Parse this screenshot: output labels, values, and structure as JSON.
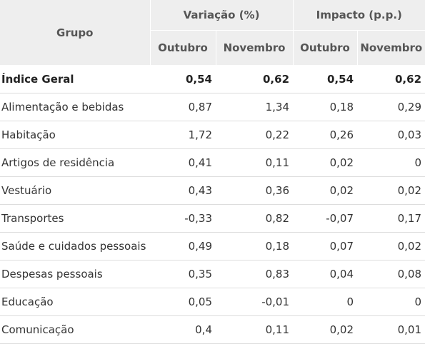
{
  "header": {
    "group": "Grupo",
    "variation": "Variação (%)",
    "impact": "Impacto (p.p.)",
    "months": [
      "Outubro",
      "Novembro",
      "Outubro",
      "Novembro"
    ]
  },
  "rows": [
    {
      "group": "Índice Geral",
      "var_oct": "0,54",
      "var_nov": "0,62",
      "imp_oct": "0,54",
      "imp_nov": "0,62",
      "bold": true
    },
    {
      "group": "Alimentação e bebidas",
      "var_oct": "0,87",
      "var_nov": "1,34",
      "imp_oct": "0,18",
      "imp_nov": "0,29"
    },
    {
      "group": "Habitação",
      "var_oct": "1,72",
      "var_nov": "0,22",
      "imp_oct": "0,26",
      "imp_nov": "0,03"
    },
    {
      "group": "Artigos de residência",
      "var_oct": "0,41",
      "var_nov": "0,11",
      "imp_oct": "0,02",
      "imp_nov": "0"
    },
    {
      "group": "Vestuário",
      "var_oct": "0,43",
      "var_nov": "0,36",
      "imp_oct": "0,02",
      "imp_nov": "0,02"
    },
    {
      "group": "Transportes",
      "var_oct": "-0,33",
      "var_nov": "0,82",
      "imp_oct": "-0,07",
      "imp_nov": "0,17"
    },
    {
      "group": "Saúde e cuidados pessoais",
      "var_oct": "0,49",
      "var_nov": "0,18",
      "imp_oct": "0,07",
      "imp_nov": "0,02"
    },
    {
      "group": "Despesas pessoais",
      "var_oct": "0,35",
      "var_nov": "0,83",
      "imp_oct": "0,04",
      "imp_nov": "0,08"
    },
    {
      "group": "Educação",
      "var_oct": "0,05",
      "var_nov": "-0,01",
      "imp_oct": "0",
      "imp_nov": "0"
    },
    {
      "group": "Comunicação",
      "var_oct": "0,4",
      "var_nov": "0,11",
      "imp_oct": "0,02",
      "imp_nov": "0,01"
    }
  ]
}
